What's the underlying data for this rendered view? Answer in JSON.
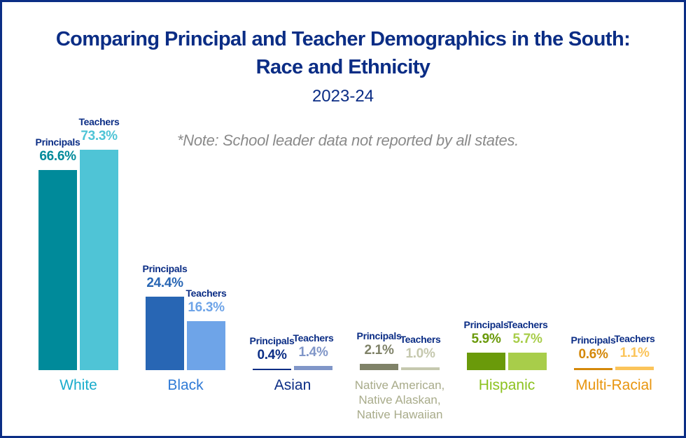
{
  "title_line1": "Comparing Principal and Teacher Demographics in the South:",
  "title_line2": "Race and Ethnicity",
  "subtitle": "2023-24",
  "note": "*Note: School leader data not reported by all states.",
  "chart_data": {
    "type": "bar",
    "title": "Comparing Principal and Teacher Demographics in the South: Race and Ethnicity",
    "subtitle": "2023-24",
    "categories": [
      "White",
      "Black",
      "Asian",
      "Native American, Native Alaskan, Native Hawaiian",
      "Hispanic",
      "Multi-Racial"
    ],
    "category_lines": [
      [
        "White"
      ],
      [
        "Black"
      ],
      [
        "Asian"
      ],
      [
        "Native American,",
        "Native Alaskan,",
        "Native Hawaiian"
      ],
      [
        "Hispanic"
      ],
      [
        "Multi-Racial"
      ]
    ],
    "series": [
      {
        "name": "Principals",
        "values": [
          66.6,
          24.4,
          0.4,
          2.1,
          5.9,
          0.6
        ]
      },
      {
        "name": "Teachers",
        "values": [
          73.3,
          16.3,
          1.4,
          1.0,
          5.7,
          1.1
        ]
      }
    ],
    "value_labels": [
      [
        "66.6%",
        "24.4%",
        "0.4%",
        "2.1%",
        "5.9%",
        "0.6%"
      ],
      [
        "73.3%",
        "16.3%",
        "1.4%",
        "1.0%",
        "5.7%",
        "1.1%"
      ]
    ],
    "unit": "%",
    "grid": false,
    "legend": "none",
    "colors": {
      "principals": [
        "#008a9a",
        "#2866b4",
        "#0b2d85",
        "#7f8268",
        "#6a9a0a",
        "#d4880a"
      ],
      "teachers": [
        "#4fc4d6",
        "#6ea4e8",
        "#8096c8",
        "#c5c8ae",
        "#a8cd4a",
        "#fbc45a"
      ],
      "principal_labels": [
        "#008a9a",
        "#2866b4",
        "#0b2d85",
        "#7f8268",
        "#6a9a0a",
        "#d4880a"
      ],
      "teacher_labels": [
        "#4fc4d6",
        "#6ea4e8",
        "#8096c8",
        "#c5c8ae",
        "#a8cd4a",
        "#fbc45a"
      ],
      "categories": [
        "#1aaccc",
        "#2f7ad6",
        "#0b2d85",
        "#a8ab8a",
        "#8cc21f",
        "#e8950f"
      ]
    }
  }
}
